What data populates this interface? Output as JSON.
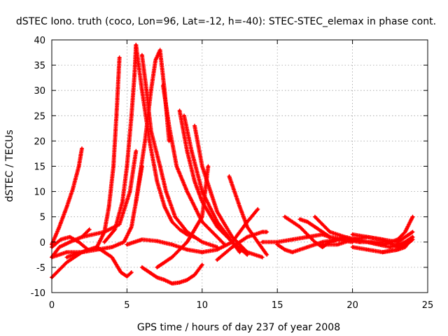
{
  "chart_data": {
    "type": "scatter",
    "title": "dSTEC Iono. truth (coco, Lon=96, Lat=-12, h=-40): STEC-STEC_elemax in phase cont.",
    "xlabel": "GPS time / hours of day 237 of year 2008",
    "ylabel": "dSTEC  / TECUs",
    "xlim": [
      0,
      25
    ],
    "ylim": [
      -10,
      40
    ],
    "xticks": [
      0,
      5,
      10,
      15,
      20,
      25
    ],
    "yticks": [
      -10,
      -5,
      0,
      5,
      10,
      15,
      20,
      25,
      30,
      35,
      40
    ],
    "grid": true,
    "legend": "none",
    "marker": "plus",
    "color": "#ff0000",
    "series": [
      {
        "x": [
          0.0,
          0.5,
          1.0,
          1.4,
          1.8,
          2.0
        ],
        "y": [
          -0.5,
          3,
          7,
          10.5,
          15,
          18.5
        ]
      },
      {
        "x": [
          0.0,
          0.6,
          1.2,
          1.8,
          2.4
        ],
        "y": [
          -1,
          0.5,
          1,
          0,
          -1.5
        ]
      },
      {
        "x": [
          0.0,
          0.5,
          1.2,
          2.0,
          2.5
        ],
        "y": [
          -3,
          -1,
          0,
          1,
          2.5
        ]
      },
      {
        "x": [
          0.0,
          1.0,
          2.0,
          3.0,
          3.5,
          3.8,
          4.1,
          4.3,
          4.5
        ],
        "y": [
          -3,
          -2,
          -2,
          -1,
          2,
          7,
          15,
          25,
          36.5
        ]
      },
      {
        "x": [
          0.0,
          1.0,
          2.0,
          3.0,
          4.0,
          4.6,
          5.0,
          5.3
        ],
        "y": [
          -7,
          -4,
          -2,
          -1,
          -3,
          -6,
          -6.8,
          -6
        ]
      },
      {
        "x": [
          1.0,
          2.0,
          3.0,
          4.0,
          4.8,
          5.3,
          5.6,
          6.0
        ],
        "y": [
          -3,
          -2,
          -1.5,
          -1,
          0,
          3,
          8,
          15
        ]
      },
      {
        "x": [
          2.0,
          3.5,
          4.5,
          5.2,
          5.6
        ],
        "y": [
          1,
          2,
          3.5,
          10,
          18
        ]
      },
      {
        "x": [
          3.5,
          4.2,
          4.7,
          5.0,
          5.3,
          5.5,
          5.6
        ],
        "y": [
          0,
          2.5,
          8,
          15,
          25,
          33,
          39
        ]
      },
      {
        "x": [
          5.6,
          6.0,
          6.5,
          7.0,
          7.5,
          8.0,
          8.5,
          9.0,
          9.5
        ],
        "y": [
          39,
          30,
          20,
          12,
          7,
          4,
          2.5,
          1.5,
          1
        ]
      },
      {
        "x": [
          5.6,
          6.2,
          6.6,
          6.9,
          7.2,
          7.5,
          7.8
        ],
        "y": [
          8,
          20,
          30,
          36,
          38,
          30,
          20
        ]
      },
      {
        "x": [
          6.0,
          6.3,
          6.6,
          7.2,
          7.6,
          8.2,
          9.0,
          10.0,
          11.0
        ],
        "y": [
          37,
          30,
          22,
          15,
          10,
          5,
          2,
          0,
          -1
        ]
      },
      {
        "x": [
          5.0,
          5.5,
          6.0,
          7.0,
          8.0,
          9.0,
          10.0
        ],
        "y": [
          -0.5,
          0,
          0.5,
          0.2,
          -0.5,
          -1.5,
          -2
        ]
      },
      {
        "x": [
          6.0,
          6.5,
          7.0,
          7.5,
          8.0,
          8.5,
          9.0,
          9.5,
          10.0
        ],
        "y": [
          -5,
          -6,
          -7,
          -7.5,
          -8.2,
          -8,
          -7.5,
          -6.5,
          -4.5
        ]
      },
      {
        "x": [
          7.4,
          7.8,
          8.3,
          9.0,
          10.0,
          11.0,
          11.5
        ],
        "y": [
          31,
          23,
          15,
          10,
          4,
          1,
          -0.5
        ]
      },
      {
        "x": [
          8.5,
          9.0,
          9.5,
          10.0,
          11.0,
          12.0,
          12.5
        ],
        "y": [
          26,
          18,
          12,
          8,
          3,
          0,
          -2
        ]
      },
      {
        "x": [
          8.8,
          9.3,
          10.0,
          11.0,
          12.0,
          13.0
        ],
        "y": [
          25,
          18,
          10,
          4,
          0,
          -2.5
        ]
      },
      {
        "x": [
          9.5,
          10.0,
          11.0,
          12.0,
          13.0,
          14.0
        ],
        "y": [
          23,
          15,
          6,
          1,
          -2,
          -3
        ]
      },
      {
        "x": [
          7.0,
          8.0,
          9.0,
          10.0,
          10.4
        ],
        "y": [
          -5,
          -3,
          0,
          5,
          15
        ]
      },
      {
        "x": [
          10.0,
          11.0,
          12.0,
          13.0,
          13.7
        ],
        "y": [
          -2,
          -1.5,
          0,
          4,
          6.5
        ]
      },
      {
        "x": [
          11.0,
          12.0,
          13.0,
          14.0,
          14.3
        ],
        "y": [
          -3.5,
          -1,
          1,
          2,
          2
        ]
      },
      {
        "x": [
          11.8,
          12.5,
          13.0,
          13.7,
          14.3
        ],
        "y": [
          13,
          7,
          3,
          0,
          -2.5
        ]
      },
      {
        "x": [
          14.0,
          15.0,
          16.0,
          17.0,
          18.0,
          18.5
        ],
        "y": [
          0,
          0,
          0.5,
          1,
          1.5,
          1
        ]
      },
      {
        "x": [
          15.5,
          16.5,
          17.5,
          18.0,
          18.5,
          19.5,
          20.5
        ],
        "y": [
          5,
          3,
          0,
          -1,
          0,
          1,
          0
        ]
      },
      {
        "x": [
          15.0,
          15.5,
          16.0,
          17.0,
          18.0,
          19.0,
          20.0
        ],
        "y": [
          -0.5,
          -1.5,
          -2,
          -1,
          0,
          0.5,
          0
        ]
      },
      {
        "x": [
          16.5,
          17.0,
          17.5,
          18.0,
          18.5,
          19.5,
          20.5,
          22.0
        ],
        "y": [
          4.5,
          4,
          3,
          2,
          1,
          0.5,
          0,
          0
        ]
      },
      {
        "x": [
          17.5,
          18.5,
          19.5,
          21.0,
          22.5,
          23.5,
          24.0
        ],
        "y": [
          5,
          2,
          1,
          0,
          -1,
          0,
          1
        ]
      },
      {
        "x": [
          18.0,
          19.0,
          20.0,
          21.0,
          22.0,
          23.0,
          23.7,
          24.0
        ],
        "y": [
          -0.5,
          -0.5,
          0.5,
          1,
          0.5,
          -1,
          0,
          1
        ]
      },
      {
        "x": [
          20.0,
          21.0,
          22.0,
          23.0,
          23.5,
          24.0
        ],
        "y": [
          1.5,
          1,
          0.5,
          0,
          1,
          2
        ]
      },
      {
        "x": [
          20.0,
          21.0,
          22.0,
          23.0,
          23.8,
          24.0
        ],
        "y": [
          -1,
          -1.5,
          -2,
          -1.5,
          0,
          0.5
        ]
      },
      {
        "x": [
          21.0,
          22.0,
          23.0,
          23.5,
          24.0
        ],
        "y": [
          0,
          -0.5,
          0.5,
          2,
          5
        ]
      },
      {
        "x": [
          22.0,
          23.0,
          23.5,
          24.0
        ],
        "y": [
          -2,
          -1.5,
          -1,
          1
        ]
      }
    ]
  }
}
